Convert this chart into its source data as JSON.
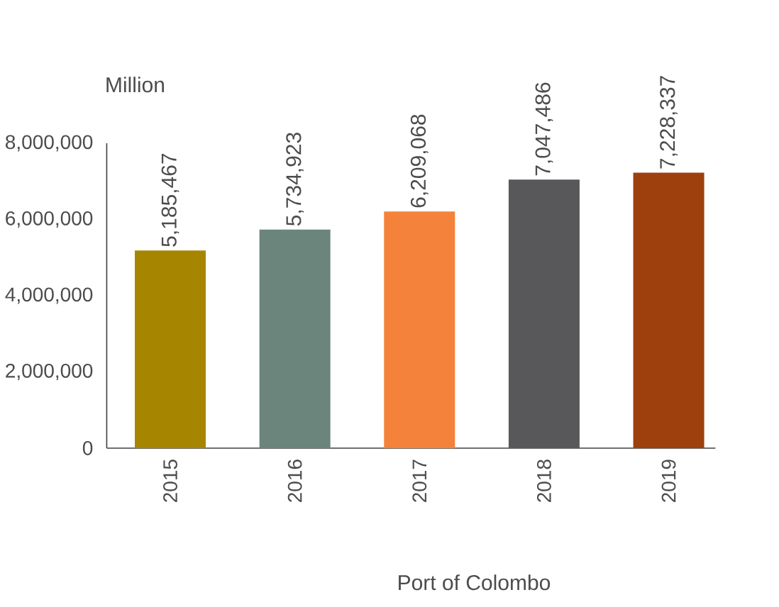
{
  "chart_data": {
    "type": "bar",
    "xlabel": "Port of Colombo",
    "ylabel": "Million",
    "categories": [
      "2015",
      "2016",
      "2017",
      "2018",
      "2019"
    ],
    "values": [
      5185467,
      5734923,
      6209068,
      7047486,
      7228337
    ],
    "value_labels": [
      "5,185,467",
      "5,734,923",
      "6,209,068",
      "7,047,486",
      "7,228,337"
    ],
    "colors": [
      "#a68600",
      "#6b857c",
      "#f5823a",
      "#58585a",
      "#9e3f0e"
    ],
    "ylim": [
      0,
      8000000
    ],
    "yticks": [
      0,
      {
        "value": 2000000,
        "label": "2,000,000"
      },
      {
        "value": 4000000,
        "label": "4,000,000"
      },
      {
        "value": 6000000,
        "label": "6,000,000"
      },
      {
        "value": 8000000,
        "label": "8,000,000"
      }
    ]
  }
}
